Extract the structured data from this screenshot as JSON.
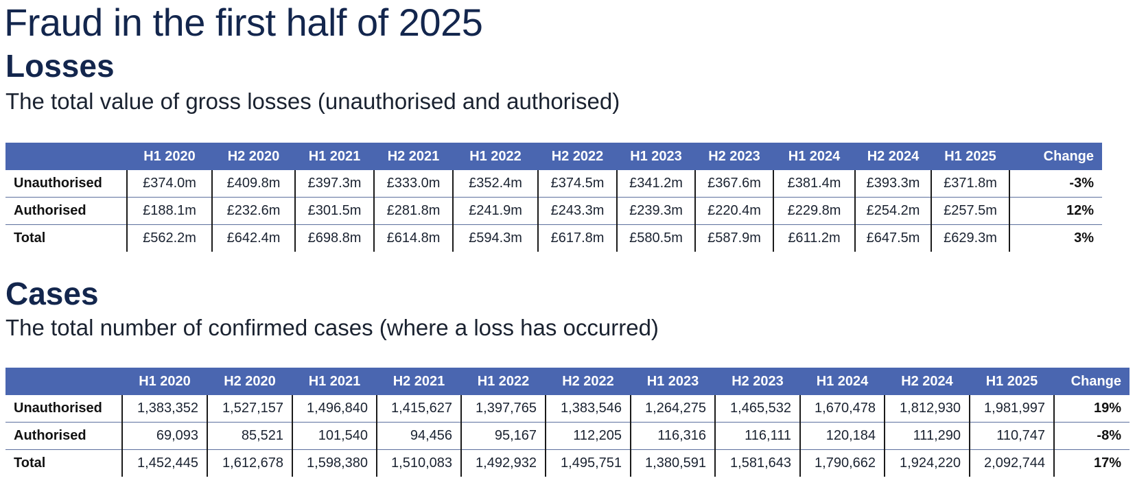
{
  "page": {
    "title": "Fraud in the first half of 2025"
  },
  "losses": {
    "heading": "Losses",
    "subtitle": "The total value of gross losses (unauthorised and authorised)",
    "columns": [
      "H1 2020",
      "H2 2020",
      "H1 2021",
      "H2 2021",
      "H1 2022",
      "H2 2022",
      "H1 2023",
      "H2 2023",
      "H1 2024",
      "H2 2024",
      "H1 2025",
      "Change"
    ],
    "rows": [
      {
        "label": "Unauthorised",
        "values": [
          "£374.0m",
          "£409.8m",
          "£397.3m",
          "£333.0m",
          "£352.4m",
          "£374.5m",
          "£341.2m",
          "£367.6m",
          "£381.4m",
          "£393.3m",
          "£371.8m"
        ],
        "change": "-3%"
      },
      {
        "label": "Authorised",
        "values": [
          "£188.1m",
          "£232.6m",
          "£301.5m",
          "£281.8m",
          "£241.9m",
          "£243.3m",
          "£239.3m",
          "£220.4m",
          "£229.8m",
          "£254.2m",
          "£257.5m"
        ],
        "change": "12%"
      },
      {
        "label": "Total",
        "values": [
          "£562.2m",
          "£642.4m",
          "£698.8m",
          "£614.8m",
          "£594.3m",
          "£617.8m",
          "£580.5m",
          "£587.9m",
          "£611.2m",
          "£647.5m",
          "£629.3m"
        ],
        "change": "3%"
      }
    ]
  },
  "cases": {
    "heading": "Cases",
    "subtitle": "The total number of confirmed cases (where a loss has occurred)",
    "columns": [
      "H1 2020",
      "H2 2020",
      "H1 2021",
      "H2 2021",
      "H1 2022",
      "H2 2022",
      "H1 2023",
      "H2 2023",
      "H1 2024",
      "H2 2024",
      "H1 2025",
      "Change"
    ],
    "rows": [
      {
        "label": "Unauthorised",
        "values": [
          "1,383,352",
          "1,527,157",
          "1,496,840",
          "1,415,627",
          "1,397,765",
          "1,383,546",
          "1,264,275",
          "1,465,532",
          "1,670,478",
          "1,812,930",
          "1,981,997"
        ],
        "change": "19%"
      },
      {
        "label": "Authorised",
        "values": [
          "69,093",
          "85,521",
          "101,540",
          "94,456",
          "95,167",
          "112,205",
          "116,316",
          "116,111",
          "120,184",
          "111,290",
          "110,747"
        ],
        "change": "-8%"
      },
      {
        "label": "Total",
        "values": [
          "1,452,445",
          "1,612,678",
          "1,598,380",
          "1,510,083",
          "1,492,932",
          "1,495,751",
          "1,380,591",
          "1,581,643",
          "1,790,662",
          "1,924,220",
          "2,092,744"
        ],
        "change": "17%"
      }
    ]
  }
}
